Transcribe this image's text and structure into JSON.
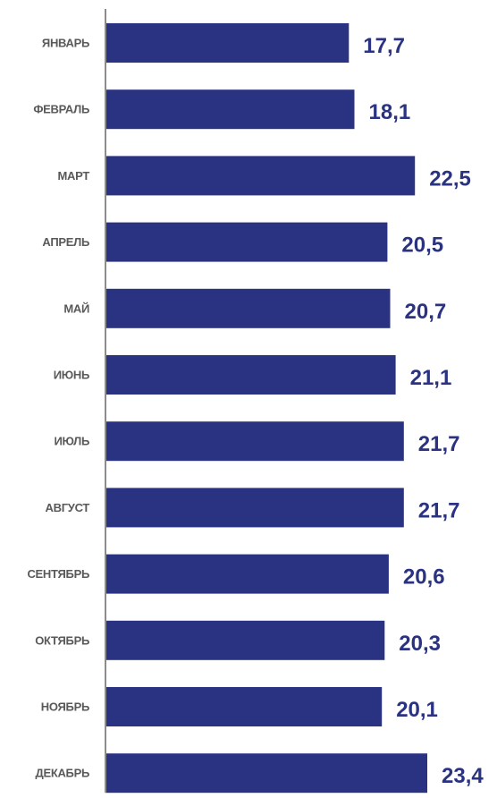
{
  "chart_data": {
    "type": "bar",
    "orientation": "horizontal",
    "categories": [
      "ЯНВАРЬ",
      "ФЕВРАЛЬ",
      "МАРТ",
      "АПРЕЛЬ",
      "МАЙ",
      "ИЮНЬ",
      "ИЮЛЬ",
      "АВГУСТ",
      "СЕНТЯБРЬ",
      "ОКТЯБРЬ",
      "НОЯБРЬ",
      "ДЕКАБРЬ"
    ],
    "values": [
      17.7,
      18.1,
      22.5,
      20.5,
      20.7,
      21.1,
      21.7,
      21.7,
      20.6,
      20.3,
      20.1,
      23.4
    ],
    "value_labels": [
      "17,7",
      "18,1",
      "22,5",
      "20,5",
      "20,7",
      "21,1",
      "21,7",
      "21,7",
      "20,6",
      "20,3",
      "20,1",
      "23,4"
    ],
    "xlim": [
      0,
      23.4
    ],
    "grid": false,
    "legend": "none",
    "title": "",
    "xlabel": "",
    "ylabel": ""
  },
  "colors": {
    "bar": "#2a3282",
    "value_label": "#2a3282",
    "category_label": "#595959",
    "axis": "#8c8c8c"
  }
}
